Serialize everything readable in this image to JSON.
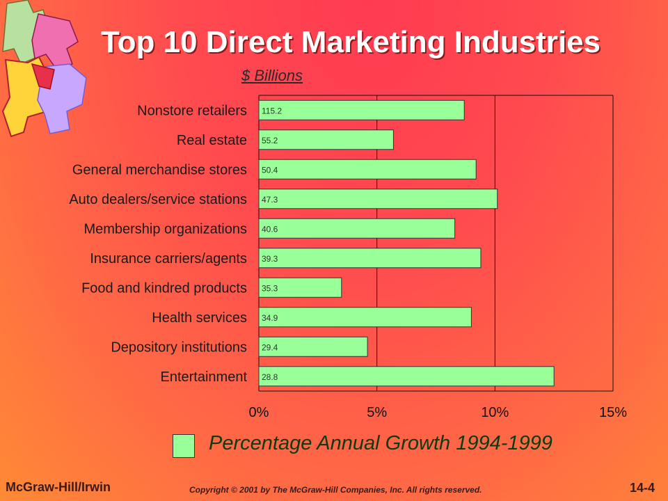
{
  "slide": {
    "title": "Top 10 Direct Marketing Industries",
    "units": "$ Billions",
    "legend": "Percentage Annual Growth 1994-1999",
    "footer_left": "McGraw-Hill/Irwin",
    "copyright": "Copyright © 2001 by The McGraw-Hill Companies, Inc.  All rights reserved.",
    "slide_number": "14-4"
  },
  "colors": {
    "bar": "#99ff99",
    "bar_border": "#333333",
    "title": "#ffffff",
    "labels": "#1a1a1a"
  },
  "chart_data": {
    "type": "bar",
    "orientation": "horizontal",
    "categories": [
      "Nonstore retailers",
      "Real estate",
      "General merchandise stores",
      "Auto dealers/service stations",
      "Membership organizations",
      "Insurance carriers/agents",
      "Food and kindred products",
      "Health services",
      "Depository institutions",
      "Entertainment"
    ],
    "series": [
      {
        "name": "Percentage Annual Growth 1994-1999",
        "values": [
          8.7,
          5.7,
          9.2,
          10.1,
          8.3,
          9.4,
          3.5,
          9.0,
          4.6,
          12.5
        ]
      }
    ],
    "data_labels": [
      "115.2",
      "55.2",
      "50.4",
      "47.3",
      "40.6",
      "39.3",
      "35.3",
      "34.9",
      "29.4",
      "28.8"
    ],
    "xlim": [
      0,
      15
    ],
    "xticks": [
      "0%",
      "5%",
      "10%",
      "15%"
    ],
    "grid": true
  }
}
